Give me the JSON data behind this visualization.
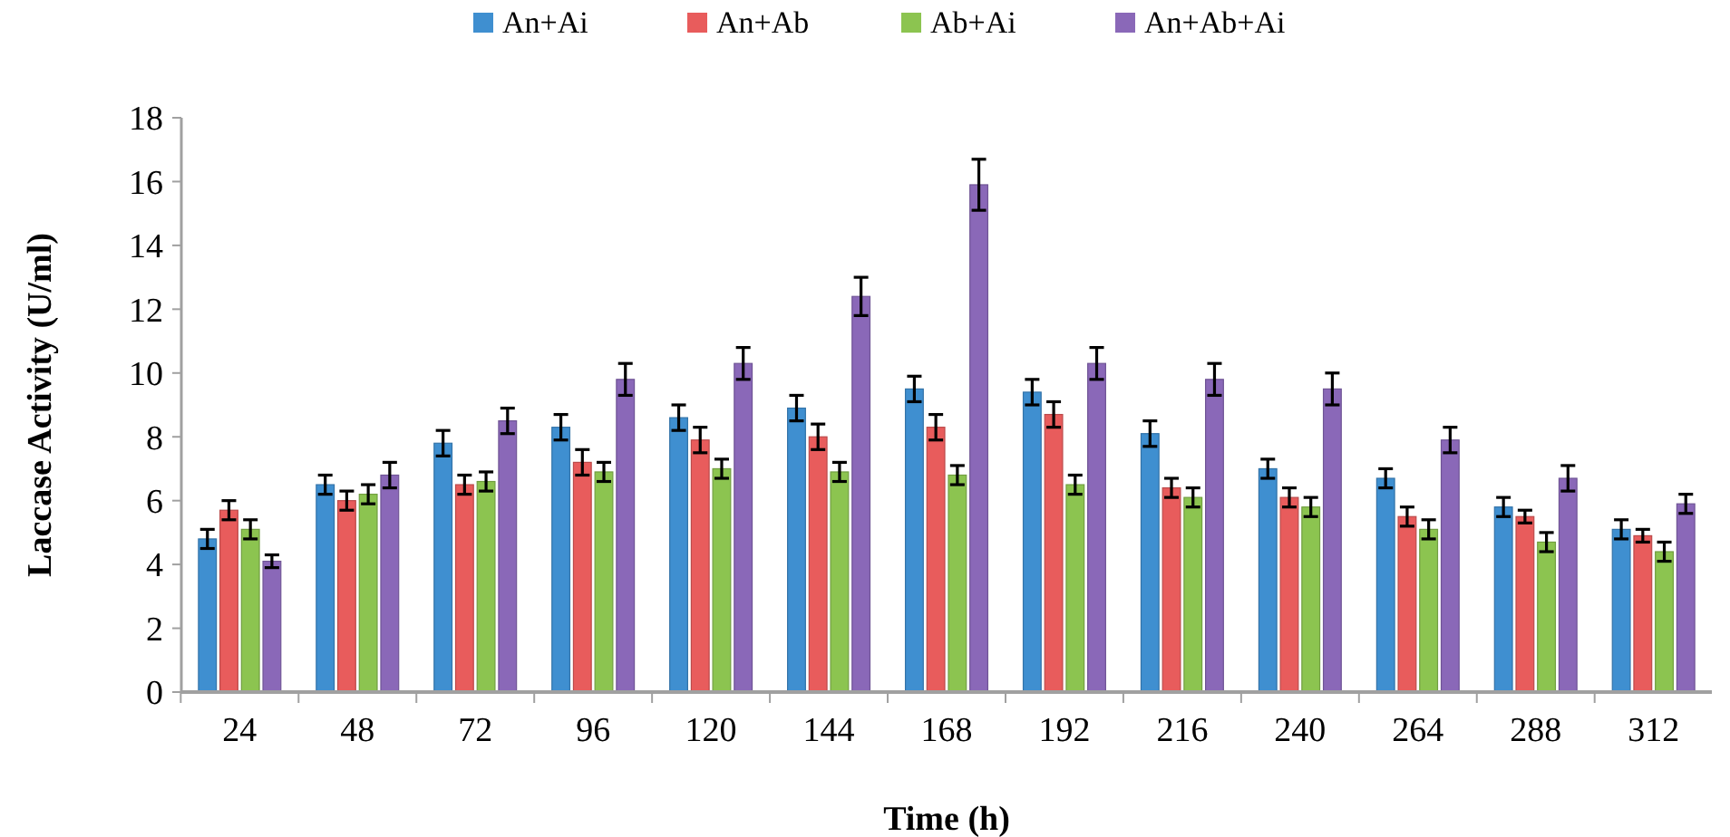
{
  "chart_data": {
    "type": "bar",
    "xlabel": "Time (h)",
    "ylabel": "Laccase Activity (U/ml)",
    "categories": [
      "24",
      "48",
      "72",
      "96",
      "120",
      "144",
      "168",
      "192",
      "216",
      "240",
      "264",
      "288",
      "312"
    ],
    "ylim": [
      0,
      18
    ],
    "yticks": [
      0,
      2,
      4,
      6,
      8,
      10,
      12,
      14,
      16,
      18
    ],
    "grid": false,
    "legend": "top",
    "series": [
      {
        "name": "An+Ai",
        "color": "#3f8fd0",
        "values": [
          4.8,
          6.5,
          7.8,
          8.3,
          8.6,
          8.9,
          9.5,
          9.4,
          8.1,
          7.0,
          6.7,
          5.8,
          5.1
        ],
        "errors": [
          0.3,
          0.3,
          0.4,
          0.4,
          0.4,
          0.4,
          0.4,
          0.4,
          0.4,
          0.3,
          0.3,
          0.3,
          0.3
        ]
      },
      {
        "name": "An+Ab",
        "color": "#e85c5c",
        "values": [
          5.7,
          6.0,
          6.5,
          7.2,
          7.9,
          8.0,
          8.3,
          8.7,
          6.4,
          6.1,
          5.5,
          5.5,
          4.9
        ],
        "errors": [
          0.3,
          0.3,
          0.3,
          0.4,
          0.4,
          0.4,
          0.4,
          0.4,
          0.3,
          0.3,
          0.3,
          0.2,
          0.2
        ]
      },
      {
        "name": "Ab+Ai",
        "color": "#8cc450",
        "values": [
          5.1,
          6.2,
          6.6,
          6.9,
          7.0,
          6.9,
          6.8,
          6.5,
          6.1,
          5.8,
          5.1,
          4.7,
          4.4
        ],
        "errors": [
          0.3,
          0.3,
          0.3,
          0.3,
          0.3,
          0.3,
          0.3,
          0.3,
          0.3,
          0.3,
          0.3,
          0.3,
          0.3
        ]
      },
      {
        "name": "An+Ab+Ai",
        "color": "#8a68b8",
        "values": [
          4.1,
          6.8,
          8.5,
          9.8,
          10.3,
          12.4,
          15.9,
          10.3,
          9.8,
          9.5,
          7.9,
          6.7,
          5.9
        ],
        "errors": [
          0.2,
          0.4,
          0.4,
          0.5,
          0.5,
          0.6,
          0.8,
          0.5,
          0.5,
          0.5,
          0.4,
          0.4,
          0.3
        ]
      }
    ]
  }
}
